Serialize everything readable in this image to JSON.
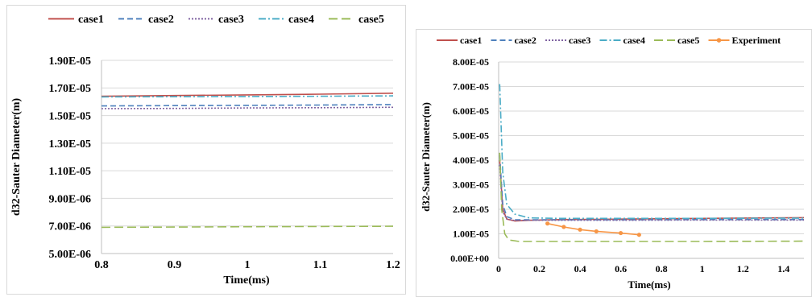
{
  "chart_data": [
    {
      "type": "line",
      "xlabel": "Time(ms)",
      "ylabel": "d32-Sauter Diameter(m)",
      "xlim": [
        0.8,
        1.2
      ],
      "ylim": [
        5e-06,
        1.9e-05
      ],
      "x_ticks": [
        "0.8",
        "0.9",
        "1",
        "1.1",
        "1.2"
      ],
      "y_ticks": [
        "5.00E-06",
        "7.00E-06",
        "9.00E-06",
        "1.10E-05",
        "1.30E-05",
        "1.50E-05",
        "1.70E-05",
        "1.90E-05"
      ],
      "grid": "horizontal",
      "legend": "top",
      "series": [
        {
          "name": "case1",
          "color": "#C0504D",
          "dash": "solid",
          "x": [
            0.8,
            0.9,
            1.0,
            1.1,
            1.2
          ],
          "y": [
            1.64e-05,
            1.645e-05,
            1.65e-05,
            1.655e-05,
            1.662e-05
          ]
        },
        {
          "name": "case2",
          "color": "#4F81BD",
          "dash": "dash",
          "x": [
            0.8,
            0.9,
            1.0,
            1.1,
            1.2
          ],
          "y": [
            1.57e-05,
            1.572e-05,
            1.574e-05,
            1.576e-05,
            1.58e-05
          ]
        },
        {
          "name": "case3",
          "color": "#8064A2",
          "dash": "dot",
          "x": [
            0.8,
            0.9,
            1.0,
            1.1,
            1.2
          ],
          "y": [
            1.55e-05,
            1.552e-05,
            1.555e-05,
            1.557e-05,
            1.56e-05
          ]
        },
        {
          "name": "case4",
          "color": "#4BACC6",
          "dash": "dashdot",
          "x": [
            0.8,
            0.9,
            1.0,
            1.1,
            1.2
          ],
          "y": [
            1.635e-05,
            1.637e-05,
            1.638e-05,
            1.64e-05,
            1.643e-05
          ]
        },
        {
          "name": "case5",
          "color": "#9BBB59",
          "dash": "longdash",
          "x": [
            0.8,
            0.9,
            1.0,
            1.1,
            1.2
          ],
          "y": [
            6.9e-06,
            6.92e-06,
            6.94e-06,
            6.96e-06,
            6.98e-06
          ]
        }
      ]
    },
    {
      "type": "line",
      "xlabel": "Time(ms)",
      "ylabel": "d32-Sauter Diameter(m)",
      "xlim": [
        0,
        1.5
      ],
      "ylim": [
        0,
        8e-05
      ],
      "x_ticks": [
        "0",
        "0.2",
        "0.4",
        "0.6",
        "0.8",
        "1",
        "1.2",
        "1.4"
      ],
      "y_ticks": [
        "0.00E+00",
        "1.00E-05",
        "2.00E-05",
        "3.00E-05",
        "4.00E-05",
        "5.00E-05",
        "6.00E-05",
        "7.00E-05",
        "8.00E-05"
      ],
      "grid": "horizontal",
      "legend": "top",
      "series": [
        {
          "name": "case1",
          "color": "#C0504D",
          "dash": "solid",
          "x": [
            0.005,
            0.02,
            0.04,
            0.08,
            0.15,
            0.3,
            0.6,
            1.0,
            1.5
          ],
          "y": [
            4e-05,
            2e-05,
            1.6e-05,
            1.52e-05,
            1.55e-05,
            1.58e-05,
            1.6e-05,
            1.63e-05,
            1.66e-05
          ]
        },
        {
          "name": "case2",
          "color": "#4F81BD",
          "dash": "dash",
          "x": [
            0.005,
            0.02,
            0.04,
            0.08,
            0.15,
            0.3,
            0.6,
            1.0,
            1.5
          ],
          "y": [
            4.2e-05,
            2.2e-05,
            1.7e-05,
            1.57e-05,
            1.57e-05,
            1.57e-05,
            1.57e-05,
            1.58e-05,
            1.58e-05
          ]
        },
        {
          "name": "case3",
          "color": "#8064A2",
          "dash": "dot",
          "x": [
            0.005,
            0.02,
            0.04,
            0.08,
            0.15,
            0.3,
            0.6,
            1.0,
            1.5
          ],
          "y": [
            3.8e-05,
            1.9e-05,
            1.6e-05,
            1.54e-05,
            1.55e-05,
            1.55e-05,
            1.55e-05,
            1.56e-05,
            1.56e-05
          ]
        },
        {
          "name": "case4",
          "color": "#4BACC6",
          "dash": "dashdot",
          "x": [
            0.005,
            0.02,
            0.04,
            0.08,
            0.15,
            0.3,
            0.6,
            1.0,
            1.5
          ],
          "y": [
            7.1e-05,
            3.5e-05,
            2.2e-05,
            1.8e-05,
            1.65e-05,
            1.63e-05,
            1.63e-05,
            1.63e-05,
            1.64e-05
          ]
        },
        {
          "name": "case5",
          "color": "#9BBB59",
          "dash": "longdash",
          "x": [
            0.005,
            0.015,
            0.03,
            0.05,
            0.1,
            0.3,
            0.6,
            1.0,
            1.5
          ],
          "y": [
            4.3e-05,
            2e-05,
            1e-05,
            7.5e-06,
            6.9e-06,
            6.9e-06,
            6.9e-06,
            6.9e-06,
            7e-06
          ]
        },
        {
          "name": "Experiment",
          "color": "#F79646",
          "dash": "solid",
          "markers": true,
          "x": [
            0.24,
            0.32,
            0.4,
            0.48,
            0.6,
            0.69
          ],
          "y": [
            1.42e-05,
            1.28e-05,
            1.17e-05,
            1.1e-05,
            1.03e-05,
            9.6e-06
          ]
        }
      ]
    }
  ]
}
